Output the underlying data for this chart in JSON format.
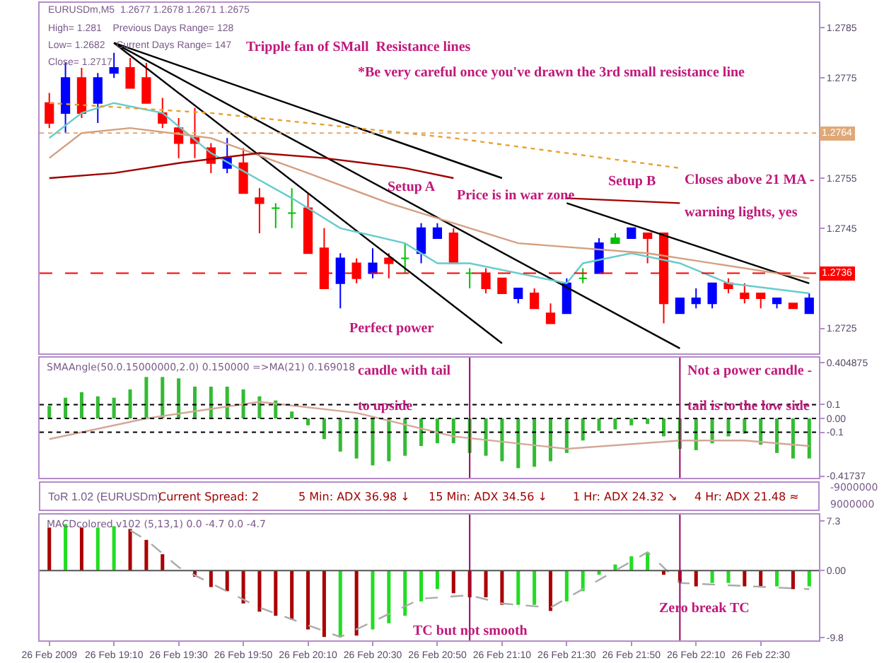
{
  "chart_data": [
    {
      "type": "candlestick",
      "tick_labels": "y",
      "x": [
        "2009-02-26T18:50",
        "2009-02-26T18:55",
        "2009-02-26T19:00",
        "2009-02-26T19:05",
        "2009-02-26T19:10",
        "2009-02-26T19:15",
        "2009-02-26T19:20",
        "2009-02-26T19:25",
        "2009-02-26T19:30",
        "2009-02-26T19:35",
        "2009-02-26T19:40",
        "2009-02-26T19:45",
        "2009-02-26T19:50",
        "2009-02-26T19:55",
        "2009-02-26T20:00",
        "2009-02-26T20:05",
        "2009-02-26T20:10",
        "2009-02-26T20:15",
        "2009-02-26T20:20",
        "2009-02-26T20:25",
        "2009-02-26T20:30",
        "2009-02-26T20:35",
        "2009-02-26T20:40",
        "2009-02-26T20:45",
        "2009-02-26T20:50",
        "2009-02-26T20:55",
        "2009-02-26T21:00",
        "2009-02-26T21:05",
        "2009-02-26T21:10",
        "2009-02-26T21:15",
        "2009-02-26T21:20",
        "2009-02-26T21:25",
        "2009-02-26T21:30",
        "2009-02-26T21:35",
        "2009-02-26T21:40",
        "2009-02-26T21:45",
        "2009-02-26T21:50",
        "2009-02-26T21:55",
        "2009-02-26T22:00",
        "2009-02-26T22:05",
        "2009-02-26T22:10",
        "2009-02-26T22:15",
        "2009-02-26T22:20",
        "2009-02-26T22:25",
        "2009-02-26T22:30",
        "2009-02-26T22:35",
        "2009-02-26T22:40",
        "2009-02-26T22:45"
      ],
      "ohlc": [
        [
          1.277,
          1.2772,
          1.2765,
          1.2766
        ],
        [
          1.2768,
          1.2778,
          1.2764,
          1.2775
        ],
        [
          1.2775,
          1.2777,
          1.2767,
          1.2768
        ],
        [
          1.277,
          1.2776,
          1.2766,
          1.2775
        ],
        [
          1.2776,
          1.278,
          1.2775,
          1.2777
        ],
        [
          1.2777,
          1.2779,
          1.2773,
          1.2773
        ],
        [
          1.2775,
          1.2778,
          1.277,
          1.277
        ],
        [
          1.2768,
          1.2771,
          1.2765,
          1.2766
        ],
        [
          1.2765,
          1.2767,
          1.2759,
          1.2762
        ],
        [
          1.2763,
          1.2769,
          1.2759,
          1.2762
        ],
        [
          1.2761,
          1.2762,
          1.2756,
          1.2758
        ],
        [
          1.2757,
          1.2763,
          1.2756,
          1.2759
        ],
        [
          1.2758,
          1.2761,
          1.2752,
          1.2752
        ],
        [
          1.2751,
          1.2753,
          1.2744,
          1.275
        ],
        [
          1.2749,
          1.275,
          1.2745,
          1.2749
        ],
        [
          1.2748,
          1.2753,
          1.2745,
          1.2748
        ],
        [
          1.2749,
          1.2752,
          1.274,
          1.274
        ],
        [
          1.2741,
          1.2745,
          1.2733,
          1.2733
        ],
        [
          1.2734,
          1.274,
          1.2729,
          1.2739
        ],
        [
          1.2738,
          1.2739,
          1.2734,
          1.2735
        ],
        [
          1.2736,
          1.2741,
          1.2735,
          1.2738
        ],
        [
          1.2739,
          1.274,
          1.2735,
          1.2738
        ],
        [
          1.2739,
          1.2742,
          1.2736,
          1.2739
        ],
        [
          1.274,
          1.2746,
          1.2738,
          1.2745
        ],
        [
          1.2743,
          1.2746,
          1.2743,
          1.2745
        ],
        [
          1.2744,
          1.2745,
          1.2738,
          1.2738
        ],
        [
          1.2736,
          1.2737,
          1.2733,
          1.2736
        ],
        [
          1.2736,
          1.2737,
          1.2732,
          1.2733
        ],
        [
          1.2735,
          1.2735,
          1.2732,
          1.2732
        ],
        [
          1.2731,
          1.2733,
          1.273,
          1.2733
        ],
        [
          1.2732,
          1.2733,
          1.2729,
          1.2729
        ],
        [
          1.2728,
          1.273,
          1.2726,
          1.2726
        ],
        [
          1.2728,
          1.2735,
          1.2728,
          1.2734
        ],
        [
          1.2735,
          1.2737,
          1.2734,
          1.2735
        ],
        [
          1.2736,
          1.2743,
          1.2736,
          1.2742
        ],
        [
          1.2742,
          1.2744,
          1.2742,
          1.2743
        ],
        [
          1.2743,
          1.2745,
          1.2743,
          1.2745
        ],
        [
          1.2744,
          1.2744,
          1.2738,
          1.2743
        ],
        [
          1.2744,
          1.2744,
          1.2726,
          1.273
        ],
        [
          1.2728,
          1.2731,
          1.2728,
          1.2731
        ],
        [
          1.273,
          1.2733,
          1.2729,
          1.2731
        ],
        [
          1.273,
          1.2734,
          1.2729,
          1.2734
        ],
        [
          1.2734,
          1.2735,
          1.2732,
          1.2733
        ],
        [
          1.2732,
          1.2734,
          1.273,
          1.2731
        ],
        [
          1.2732,
          1.2732,
          1.2729,
          1.2731
        ],
        [
          1.273,
          1.2731,
          1.2729,
          1.2731
        ],
        [
          1.273,
          1.273,
          1.2729,
          1.2729
        ],
        [
          1.2728,
          1.2732,
          1.2728,
          1.2731
        ]
      ],
      "colors": [
        "#ff0000",
        "#0000ff",
        "#ff0000",
        "#0000ff",
        "#0000ff",
        "#ff0000",
        "#ff0000",
        "#ff0000",
        "#ff0000",
        "#ff0000",
        "#ff0000",
        "#0000ff",
        "#ff0000",
        "#ff0000",
        "#00c000",
        "#00c000",
        "#ff0000",
        "#ff0000",
        "#0000ff",
        "#ff0000",
        "#0000ff",
        "#ff0000",
        "#00c000",
        "#0000ff",
        "#0000ff",
        "#ff0000",
        "#00c000",
        "#ff0000",
        "#ff0000",
        "#0000ff",
        "#ff0000",
        "#ff0000",
        "#0000ff",
        "#00c000",
        "#0000ff",
        "#00c000",
        "#0000ff",
        "#ff0000",
        "#ff0000",
        "#0000ff",
        "#0000ff",
        "#0000ff",
        "#ff0000",
        "#ff0000",
        "#ff0000",
        "#0000ff",
        "#ff0000",
        "#0000ff"
      ],
      "series": [
        {
          "type": "line",
          "color": "#000000",
          "x": [
            "2009-02-26T19:10",
            "2009-02-26T21:10"
          ],
          "values": [
            1.2782,
            1.2755
          ]
        },
        {
          "type": "line",
          "color": "#000000",
          "x": [
            "2009-02-26T19:10",
            "2009-02-26T22:05"
          ],
          "values": [
            1.2782,
            1.2721
          ]
        },
        {
          "type": "line",
          "color": "#000000",
          "x": [
            "2009-02-26T19:10",
            "2009-02-26T21:10"
          ],
          "values": [
            1.2782,
            1.2722
          ]
        },
        {
          "type": "line",
          "color": "#000000",
          "x": [
            "2009-02-26T21:30",
            "2009-02-26T22:45"
          ],
          "values": [
            1.275,
            1.2734
          ]
        },
        {
          "type": "line",
          "color": "#66cccc",
          "x": [
            "2009-02-26T18:50",
            "2009-02-26T19:00",
            "2009-02-26T19:10",
            "2009-02-26T19:25",
            "2009-02-26T19:40",
            "2009-02-26T20:05",
            "2009-02-26T20:20",
            "2009-02-26T20:40",
            "2009-02-26T20:50",
            "2009-02-26T21:00",
            "2009-02-26T21:30",
            "2009-02-26T21:35",
            "2009-02-26T21:50",
            "2009-02-26T22:05",
            "2009-02-26T22:20",
            "2009-02-26T22:45"
          ],
          "values": [
            1.2763,
            1.2768,
            1.277,
            1.2768,
            1.276,
            1.2751,
            1.2745,
            1.2742,
            1.2738,
            1.2738,
            1.2734,
            1.2738,
            1.274,
            1.2738,
            1.2734,
            1.2732
          ]
        },
        {
          "type": "line",
          "color": "#d4a080",
          "x": [
            "2009-02-26T18:50",
            "2009-02-26T19:00",
            "2009-02-26T19:15",
            "2009-02-26T19:40",
            "2009-02-26T20:10",
            "2009-02-26T20:35",
            "2009-02-26T20:50",
            "2009-02-26T21:15",
            "2009-02-26T21:55",
            "2009-02-26T22:35",
            "2009-02-26T22:45"
          ],
          "values": [
            1.2759,
            1.2764,
            1.2765,
            1.2763,
            1.2756,
            1.275,
            1.2747,
            1.2742,
            1.274,
            1.2736,
            1.2735
          ]
        },
        {
          "type": "line",
          "color": "#a00000",
          "x": [
            "2009-02-26T18:50",
            "2009-02-26T19:10",
            "2009-02-26T19:30",
            "2009-02-26T19:55",
            "2009-02-26T20:15",
            "2009-02-26T20:40",
            "2009-02-26T20:55",
            "2009-02-26T21:10",
            "2009-02-26T21:30",
            "2009-02-26T22:05"
          ],
          "values": [
            1.2755,
            1.2756,
            1.2758,
            1.276,
            1.2759,
            1.2757,
            1.2755,
            null,
            1.2751,
            1.275
          ]
        },
        {
          "type": "line",
          "color": "#e8a030",
          "line_style": "dotted",
          "x": [
            "2009-02-26T18:50",
            "2009-02-26T19:40",
            "2009-02-26T20:55",
            "2009-02-26T22:05"
          ],
          "values": [
            1.277,
            1.2768,
            1.2763,
            1.2757
          ]
        }
      ],
      "xlim": [
        "2009-02-26T18:47",
        "2009-02-26T22:48"
      ],
      "ylim": [
        1.272,
        1.279
      ],
      "yticks": [
        1.2725,
        1.2745,
        1.2755,
        1.2775,
        1.2785
      ],
      "ref_lines": [
        {
          "axis": "y",
          "value": 1.2736,
          "label": "1.2736",
          "color": "#ff0000",
          "line_style": "dashed"
        },
        {
          "axis": "y",
          "value": 1.2764,
          "label": "1.2764",
          "color": "#e0a878",
          "line_style": "dotted"
        }
      ],
      "annotations": [
        "EURUSDm,M5  1.2677 1.2678 1.2671 1.2675",
        "High= 1.281    Previous Days Range= 128",
        "Low= 1.2682    Current Days Range= 147",
        "Close= 1.2717",
        "Tripple fan of SMall  Resistance lines",
        "*Be very careful once you've drawn the 3rd small resistance line",
        "Setup A",
        "Price is in war zone",
        "Setup B",
        "Closes above 21 MA -",
        "warning lights, yes",
        "Perfect power"
      ]
    },
    {
      "type": "bar",
      "tick_labels": "y",
      "title": "SMAAngle(50.0.15000000,2.0) 0.150000 =>MA(21) 0.169018",
      "x": [
        "2009-02-26T18:50",
        "2009-02-26T18:55",
        "2009-02-26T19:00",
        "2009-02-26T19:05",
        "2009-02-26T19:10",
        "2009-02-26T19:15",
        "2009-02-26T19:20",
        "2009-02-26T19:25",
        "2009-02-26T19:30",
        "2009-02-26T19:35",
        "2009-02-26T19:40",
        "2009-02-26T19:45",
        "2009-02-26T19:50",
        "2009-02-26T19:55",
        "2009-02-26T20:00",
        "2009-02-26T20:05",
        "2009-02-26T20:10",
        "2009-02-26T20:15",
        "2009-02-26T20:20",
        "2009-02-26T20:25",
        "2009-02-26T20:30",
        "2009-02-26T20:35",
        "2009-02-26T20:40",
        "2009-02-26T20:45",
        "2009-02-26T20:50",
        "2009-02-26T20:55",
        "2009-02-26T21:00",
        "2009-02-26T21:05",
        "2009-02-26T21:10",
        "2009-02-26T21:15",
        "2009-02-26T21:20",
        "2009-02-26T21:25",
        "2009-02-26T21:30",
        "2009-02-26T21:35",
        "2009-02-26T21:40",
        "2009-02-26T21:45",
        "2009-02-26T21:50",
        "2009-02-26T21:55",
        "2009-02-26T22:00",
        "2009-02-26T22:05",
        "2009-02-26T22:10",
        "2009-02-26T22:15",
        "2009-02-26T22:20",
        "2009-02-26T22:25",
        "2009-02-26T22:30",
        "2009-02-26T22:35",
        "2009-02-26T22:40",
        "2009-02-26T22:45"
      ],
      "series": [
        {
          "type": "bar",
          "color": "#33bb33",
          "values": [
            0.09,
            0.15,
            0.19,
            0.16,
            0.15,
            0.21,
            0.3,
            0.3,
            0.29,
            0.23,
            0.23,
            0.23,
            0.21,
            0.16,
            0.13,
            0.05,
            -0.05,
            -0.15,
            -0.24,
            -0.29,
            -0.34,
            -0.31,
            -0.27,
            -0.2,
            -0.18,
            -0.18,
            -0.25,
            -0.27,
            -0.31,
            -0.36,
            -0.35,
            -0.31,
            -0.25,
            -0.16,
            -0.09,
            -0.08,
            -0.05,
            -0.04,
            -0.13,
            -0.22,
            -0.23,
            -0.18,
            -0.13,
            -0.11,
            -0.19,
            -0.25,
            -0.29,
            -0.29
          ]
        },
        {
          "type": "line",
          "color": "#d4a898",
          "x": [
            "2009-02-26T18:50",
            "2009-02-26T19:20",
            "2009-02-26T19:55",
            "2009-02-26T20:25",
            "2009-02-26T20:55",
            "2009-02-26T21:30",
            "2009-02-26T22:05",
            "2009-02-26T22:25",
            "2009-02-26T22:45"
          ],
          "values": [
            -0.15,
            0,
            0.12,
            0.04,
            -0.13,
            -0.22,
            -0.16,
            -0.16,
            -0.2
          ]
        }
      ],
      "xlim": [
        "2009-02-26T18:47",
        "2009-02-26T22:48"
      ],
      "ylim": [
        -0.43,
        0.44
      ],
      "yticks": [
        0.404875,
        0.1,
        {
          "value": 0,
          "label": "0.00"
        },
        -0.1,
        -0.41737
      ],
      "ref_lines": [
        {
          "axis": "y",
          "value": 0.1,
          "color": "#000000",
          "line_style": "dotted"
        },
        {
          "axis": "y",
          "value": 0,
          "color": "#000000",
          "line_style": "dotted"
        },
        {
          "axis": "y",
          "value": -0.1,
          "color": "#000000",
          "line_style": "dotted"
        },
        {
          "axis": "x",
          "value": "2009-02-26T21:00",
          "color": "#990066"
        },
        {
          "axis": "x",
          "value": "2009-02-26T22:05",
          "color": "#990066"
        }
      ],
      "annotations": [
        "candle with tail",
        "to upside",
        "Not a power candle -",
        "tail is to the low side"
      ]
    },
    {
      "type": "other",
      "title": "ToR 1.02 (EURUSDm)",
      "annotations": [
        "Current Spread: 2",
        "5 Min: ADX 36.98 ↓",
        "15 Min: ADX 34.56 ↓",
        "1 Hr: ADX 24.32 ↘",
        "4 Hr: ADX 21.48 ≈",
        "-9000000",
        "9000000"
      ]
    },
    {
      "type": "bar",
      "title": "MACDcolored v102 (5,13,1) 0.0 -4.7 0.0 -4.7",
      "x": [
        "2009-02-26T18:50",
        "2009-02-26T18:55",
        "2009-02-26T19:00",
        "2009-02-26T19:05",
        "2009-02-26T19:10",
        "2009-02-26T19:15",
        "2009-02-26T19:20",
        "2009-02-26T19:25",
        "2009-02-26T19:30",
        "2009-02-26T19:35",
        "2009-02-26T19:40",
        "2009-02-26T19:45",
        "2009-02-26T19:50",
        "2009-02-26T19:55",
        "2009-02-26T20:00",
        "2009-02-26T20:05",
        "2009-02-26T20:10",
        "2009-02-26T20:15",
        "2009-02-26T20:20",
        "2009-02-26T20:25",
        "2009-02-26T20:30",
        "2009-02-26T20:35",
        "2009-02-26T20:40",
        "2009-02-26T20:45",
        "2009-02-26T20:50",
        "2009-02-26T20:55",
        "2009-02-26T21:00",
        "2009-02-26T21:05",
        "2009-02-26T21:10",
        "2009-02-26T21:15",
        "2009-02-26T21:20",
        "2009-02-26T21:25",
        "2009-02-26T21:30",
        "2009-02-26T21:35",
        "2009-02-26T21:40",
        "2009-02-26T21:45",
        "2009-02-26T21:50",
        "2009-02-26T21:55",
        "2009-02-26T22:00",
        "2009-02-26T22:05",
        "2009-02-26T22:10",
        "2009-02-26T22:15",
        "2009-02-26T22:20",
        "2009-02-26T22:25",
        "2009-02-26T22:30",
        "2009-02-26T22:35",
        "2009-02-26T22:40",
        "2009-02-26T22:45"
      ],
      "series": [
        {
          "type": "bar",
          "colors": [
            "#aa0000",
            "#22dd22",
            "#aa0000",
            "#22dd22",
            "#22dd22",
            "#aa0000",
            "#aa0000",
            "#aa0000",
            "#aa0000",
            "#aa0000",
            "#aa0000",
            "#aa0000",
            "#aa0000",
            "#aa0000",
            "#aa0000",
            "#aa0000",
            "#aa0000",
            "#aa0000",
            "#22dd22",
            "#aa0000",
            "#22dd22",
            "#22dd22",
            "#22dd22",
            "#22dd22",
            "#22dd22",
            "#aa0000",
            "#aa0000",
            "#aa0000",
            "#aa0000",
            "#22dd22",
            "#22dd22",
            "#aa0000",
            "#22dd22",
            "#22dd22",
            "#22dd22",
            "#22dd22",
            "#22dd22",
            "#22dd22",
            "#aa0000",
            "#aa0000",
            "#aa0000",
            "#22dd22",
            "#22dd22",
            "#aa0000",
            "#aa0000",
            "#22dd22",
            "#aa0000",
            "#22dd22"
          ],
          "values": [
            6.3,
            6.8,
            6.3,
            6.3,
            6.5,
            6.1,
            4.5,
            2.4,
            null,
            -0.9,
            -2.4,
            -3.0,
            -4.8,
            -6.0,
            -6.6,
            -7.2,
            -8.6,
            -9.7,
            -9.7,
            -9.5,
            -8.6,
            -7.7,
            -6.6,
            -4.5,
            -2.7,
            -3.3,
            -3.9,
            -3.9,
            -5.0,
            -5.0,
            -5.0,
            -5.9,
            -4.5,
            -3.0,
            -0.6,
            0.9,
            2.1,
            2.7,
            -0.6,
            -1.8,
            -2.3,
            -1.8,
            -1.8,
            -2.3,
            -2.3,
            -2.3,
            -2.7,
            -2.3
          ]
        },
        {
          "type": "line",
          "color": "#aaaaaa",
          "line_style": "dashed",
          "x": [
            "2009-02-26T19:15",
            "2009-02-26T19:20",
            "2009-02-26T19:30",
            "2009-02-26T19:55",
            "2009-02-26T20:20",
            "2009-02-26T20:45",
            "2009-02-26T21:00",
            "2009-02-26T21:10",
            "2009-02-26T21:25",
            "2009-02-26T21:55",
            "2009-02-26T22:05",
            "2009-02-26T22:45"
          ],
          "values": [
            5.9,
            4.5,
            0.5,
            -5.4,
            -9.7,
            -4.1,
            -3.6,
            -4.8,
            -5.4,
            2.7,
            -1.8,
            -2.7
          ]
        }
      ],
      "xlim": [
        "2009-02-26T18:47",
        "2009-02-26T22:48"
      ],
      "xticks": [
        {
          "value": "2009-02-26T18:50",
          "label": "26 Feb 2009"
        },
        {
          "value": "2009-02-26T19:10",
          "label": "26 Feb 19:10"
        },
        {
          "value": "2009-02-26T19:30",
          "label": "26 Feb 19:30"
        },
        {
          "value": "2009-02-26T19:50",
          "label": "26 Feb 19:50"
        },
        {
          "value": "2009-02-26T20:10",
          "label": "26 Feb 20:10"
        },
        {
          "value": "2009-02-26T20:30",
          "label": "26 Feb 20:30"
        },
        {
          "value": "2009-02-26T20:50",
          "label": "26 Feb 20:50"
        },
        {
          "value": "2009-02-26T21:10",
          "label": "26 Feb 21:10"
        },
        {
          "value": "2009-02-26T21:30",
          "label": "26 Feb 21:30"
        },
        {
          "value": "2009-02-26T21:50",
          "label": "26 Feb 21:50"
        },
        {
          "value": "2009-02-26T22:10",
          "label": "26 Feb 22:10"
        },
        {
          "value": "2009-02-26T22:30",
          "label": "26 Feb 22:30"
        }
      ],
      "ylim": [
        -10.2,
        8.2
      ],
      "yticks": [
        7.3,
        {
          "value": 0,
          "label": "0.00"
        },
        -9.8
      ],
      "ref_lines": [
        {
          "axis": "y",
          "value": 0,
          "color": "#555555"
        },
        {
          "axis": "x",
          "value": "2009-02-26T21:00",
          "color": "#990066"
        },
        {
          "axis": "x",
          "value": "2009-02-26T22:05",
          "color": "#990066"
        }
      ],
      "annotations": [
        "TC but not smooth",
        "Zero break TC"
      ]
    }
  ]
}
